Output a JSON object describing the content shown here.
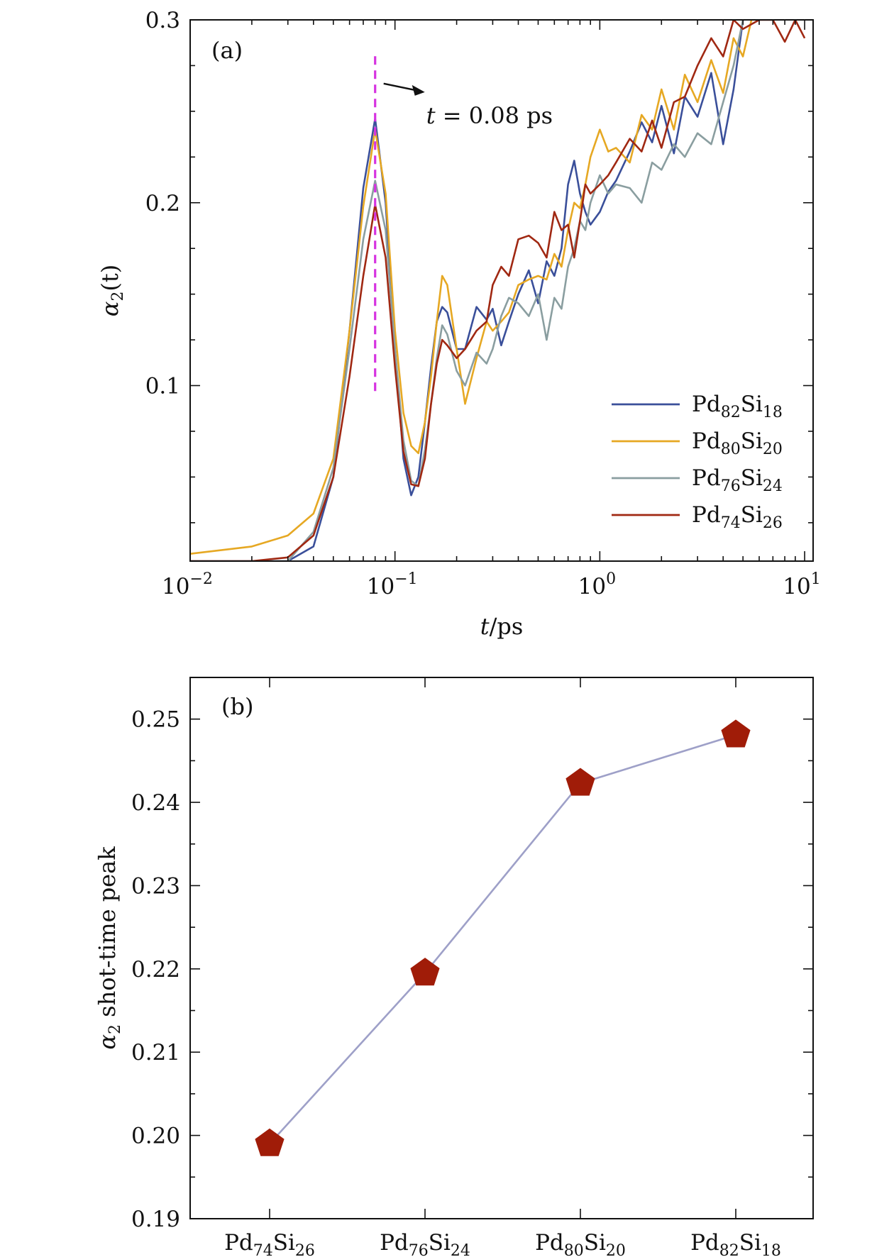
{
  "colors": {
    "Pd82Si18": "#3a4f9a",
    "Pd80Si20": "#e6a823",
    "Pd76Si24": "#8a9ea0",
    "Pd74Si26": "#a02812",
    "marker": "#a01c08",
    "connector": "#9ea0c8",
    "vline": "#d633e0"
  },
  "chart_data": [
    {
      "type": "line",
      "panel_label": "(a)",
      "xscale": "log",
      "xlim": [
        0.01,
        11
      ],
      "ylim": [
        0.004,
        0.3
      ],
      "xlabel": {
        "main": "t",
        "rest": "/ps"
      },
      "ylabel": {
        "main": "α",
        "sub": "2",
        "rest": "(t)"
      },
      "xticks": [
        {
          "value": 0.01,
          "base": "10",
          "exp": "−2"
        },
        {
          "value": 0.1,
          "base": "10",
          "exp": "−1"
        },
        {
          "value": 1,
          "base": "10",
          "exp": "0"
        },
        {
          "value": 10,
          "base": "10",
          "exp": "1"
        }
      ],
      "yticks": [
        {
          "value": 0.1,
          "label": "0.1"
        },
        {
          "value": 0.2,
          "label": "0.2"
        },
        {
          "value": 0.3,
          "label": "0.3"
        }
      ],
      "annotation": {
        "text_italic": "t",
        "text_rest": " = 0.08 ps",
        "x": 0.08,
        "y_from": 0.097,
        "y_to": 0.283
      },
      "legend": {
        "position": "lower-right"
      },
      "series": [
        {
          "key": "Pd82Si18",
          "name": {
            "a": "Pd",
            "a_sub": "82",
            "b": "Si",
            "b_sub": "18"
          },
          "x": [
            0.01,
            0.02,
            0.03,
            0.04,
            0.05,
            0.06,
            0.07,
            0.08,
            0.09,
            0.1,
            0.11,
            0.12,
            0.13,
            0.14,
            0.15,
            0.16,
            0.17,
            0.18,
            0.2,
            0.22,
            0.25,
            0.28,
            0.3,
            0.33,
            0.36,
            0.4,
            0.45,
            0.5,
            0.55,
            0.6,
            0.65,
            0.7,
            0.75,
            0.8,
            0.85,
            0.9,
            1.0,
            1.1,
            1.2,
            1.4,
            1.6,
            1.8,
            2.0,
            2.3,
            2.6,
            3.0,
            3.5,
            4.0,
            4.5,
            5.0
          ],
          "y": [
            0.0,
            0.0,
            0.002,
            0.012,
            0.05,
            0.13,
            0.208,
            0.246,
            0.2,
            0.12,
            0.06,
            0.04,
            0.05,
            0.08,
            0.11,
            0.135,
            0.143,
            0.14,
            0.12,
            0.12,
            0.143,
            0.136,
            0.142,
            0.122,
            0.135,
            0.15,
            0.163,
            0.145,
            0.168,
            0.16,
            0.175,
            0.21,
            0.223,
            0.205,
            0.195,
            0.188,
            0.195,
            0.206,
            0.212,
            0.228,
            0.244,
            0.233,
            0.253,
            0.227,
            0.258,
            0.247,
            0.271,
            0.232,
            0.262,
            0.3
          ]
        },
        {
          "key": "Pd80Si20",
          "name": {
            "a": "Pd",
            "a_sub": "80",
            "b": "Si",
            "b_sub": "20"
          },
          "x": [
            0.01,
            0.02,
            0.03,
            0.04,
            0.05,
            0.06,
            0.07,
            0.08,
            0.09,
            0.1,
            0.11,
            0.12,
            0.13,
            0.14,
            0.15,
            0.16,
            0.17,
            0.18,
            0.2,
            0.22,
            0.25,
            0.28,
            0.3,
            0.33,
            0.36,
            0.4,
            0.45,
            0.5,
            0.55,
            0.6,
            0.65,
            0.7,
            0.75,
            0.8,
            0.85,
            0.9,
            1.0,
            1.1,
            1.2,
            1.4,
            1.6,
            1.8,
            2.0,
            2.3,
            2.6,
            3.0,
            3.5,
            4.0,
            4.5,
            5.0,
            5.5
          ],
          "y": [
            0.008,
            0.012,
            0.018,
            0.03,
            0.06,
            0.13,
            0.198,
            0.24,
            0.205,
            0.13,
            0.085,
            0.067,
            0.063,
            0.08,
            0.105,
            0.135,
            0.16,
            0.155,
            0.12,
            0.09,
            0.115,
            0.135,
            0.13,
            0.135,
            0.14,
            0.155,
            0.158,
            0.16,
            0.158,
            0.172,
            0.165,
            0.185,
            0.2,
            0.197,
            0.21,
            0.225,
            0.24,
            0.228,
            0.23,
            0.222,
            0.248,
            0.24,
            0.262,
            0.24,
            0.27,
            0.255,
            0.278,
            0.26,
            0.29,
            0.28,
            0.3
          ]
        },
        {
          "key": "Pd76Si24",
          "name": {
            "a": "Pd",
            "a_sub": "76",
            "b": "Si",
            "b_sub": "24"
          },
          "x": [
            0.01,
            0.02,
            0.03,
            0.04,
            0.05,
            0.06,
            0.07,
            0.08,
            0.09,
            0.1,
            0.11,
            0.12,
            0.13,
            0.14,
            0.15,
            0.16,
            0.17,
            0.18,
            0.2,
            0.22,
            0.25,
            0.28,
            0.3,
            0.33,
            0.36,
            0.4,
            0.45,
            0.5,
            0.55,
            0.6,
            0.65,
            0.7,
            0.75,
            0.8,
            0.85,
            0.9,
            1.0,
            1.1,
            1.2,
            1.4,
            1.6,
            1.8,
            2.0,
            2.3,
            2.6,
            3.0,
            3.5,
            4.0,
            4.5,
            5.0
          ],
          "y": [
            0.0,
            0.0,
            0.002,
            0.02,
            0.055,
            0.12,
            0.18,
            0.212,
            0.185,
            0.12,
            0.07,
            0.048,
            0.045,
            0.065,
            0.09,
            0.115,
            0.133,
            0.128,
            0.108,
            0.1,
            0.118,
            0.112,
            0.12,
            0.138,
            0.148,
            0.145,
            0.138,
            0.15,
            0.125,
            0.148,
            0.142,
            0.165,
            0.175,
            0.19,
            0.185,
            0.2,
            0.215,
            0.205,
            0.21,
            0.208,
            0.2,
            0.222,
            0.218,
            0.232,
            0.225,
            0.238,
            0.232,
            0.255,
            0.275,
            0.3
          ]
        },
        {
          "key": "Pd74Si26",
          "name": {
            "a": "Pd",
            "a_sub": "74",
            "b": "Si",
            "b_sub": "26"
          },
          "x": [
            0.01,
            0.02,
            0.03,
            0.04,
            0.05,
            0.06,
            0.07,
            0.08,
            0.09,
            0.1,
            0.11,
            0.12,
            0.13,
            0.14,
            0.15,
            0.16,
            0.17,
            0.18,
            0.2,
            0.22,
            0.25,
            0.28,
            0.3,
            0.33,
            0.36,
            0.4,
            0.45,
            0.5,
            0.55,
            0.6,
            0.65,
            0.7,
            0.75,
            0.8,
            0.85,
            0.9,
            1.0,
            1.1,
            1.2,
            1.4,
            1.6,
            1.8,
            2.0,
            2.3,
            2.6,
            3.0,
            3.5,
            4.0,
            4.5,
            5.0,
            6.0,
            7.0,
            8.0,
            9.0,
            10.0
          ],
          "y": [
            0.002,
            0.002,
            0.006,
            0.018,
            0.05,
            0.105,
            0.16,
            0.199,
            0.17,
            0.11,
            0.064,
            0.046,
            0.045,
            0.06,
            0.09,
            0.112,
            0.125,
            0.122,
            0.115,
            0.12,
            0.13,
            0.135,
            0.155,
            0.165,
            0.16,
            0.18,
            0.182,
            0.178,
            0.17,
            0.195,
            0.185,
            0.188,
            0.17,
            0.19,
            0.21,
            0.205,
            0.21,
            0.215,
            0.222,
            0.235,
            0.228,
            0.245,
            0.23,
            0.255,
            0.258,
            0.275,
            0.29,
            0.28,
            0.3,
            0.295,
            0.3,
            0.3,
            0.288,
            0.3,
            0.29
          ]
        }
      ]
    },
    {
      "type": "scatter",
      "panel_label": "(b)",
      "ylim": [
        0.19,
        0.255
      ],
      "ylabel": {
        "main": "α",
        "sub": "2",
        "rest": " shot-time peak"
      },
      "yticks": [
        {
          "value": 0.19,
          "label": "0.19"
        },
        {
          "value": 0.2,
          "label": "0.20"
        },
        {
          "value": 0.21,
          "label": "0.21"
        },
        {
          "value": 0.22,
          "label": "0.22"
        },
        {
          "value": 0.23,
          "label": "0.23"
        },
        {
          "value": 0.24,
          "label": "0.24"
        },
        {
          "value": 0.25,
          "label": "0.25"
        }
      ],
      "categories": [
        {
          "a": "Pd",
          "a_sub": "74",
          "b": "Si",
          "b_sub": "26"
        },
        {
          "a": "Pd",
          "a_sub": "76",
          "b": "Si",
          "b_sub": "24"
        },
        {
          "a": "Pd",
          "a_sub": "80",
          "b": "Si",
          "b_sub": "20"
        },
        {
          "a": "Pd",
          "a_sub": "82",
          "b": "Si",
          "b_sub": "18"
        }
      ],
      "values": [
        0.199,
        0.2195,
        0.2423,
        0.2481
      ]
    }
  ]
}
